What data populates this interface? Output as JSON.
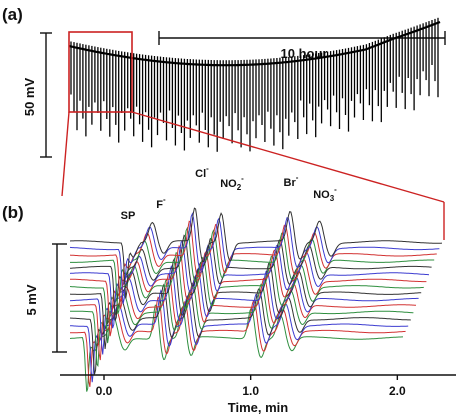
{
  "chart_data": [
    {
      "panel": "(a)",
      "type": "line",
      "title": "",
      "ylabel": "50 mV",
      "xlabel": "",
      "annotation": "10 hour",
      "series": [
        {
          "color": "#000000",
          "shape": "repeated chromatographic traces (baseline with downward spikes), ~10 hour run"
        }
      ],
      "zoom_box": {
        "color": "#cc2222"
      }
    },
    {
      "panel": "(b)",
      "type": "line",
      "title": "",
      "xlabel": "Time, min",
      "ylabel": "5 mV",
      "xticks": [
        "0.0",
        "1.0",
        "2.0"
      ],
      "xlim": [
        -0.3,
        2.4
      ],
      "peaks": [
        {
          "label": "SP",
          "time": 0.13
        },
        {
          "label": "F",
          "charge": "-",
          "time": 0.33
        },
        {
          "label": "Cl",
          "charge": "-",
          "time": 0.62
        },
        {
          "label": "NO",
          "subscript": "2",
          "charge": "-",
          "time": 0.8
        },
        {
          "label": "Br",
          "charge": "-",
          "time": 1.27
        },
        {
          "label": "NO",
          "subscript": "3",
          "charge": "-",
          "time": 1.47
        }
      ],
      "trace_colors": [
        "#333333",
        "#3c3cd0",
        "#d23232",
        "#2f8f3f"
      ],
      "trace_count": 16,
      "waterfall": "stacked traces offset along time and baseline"
    }
  ]
}
